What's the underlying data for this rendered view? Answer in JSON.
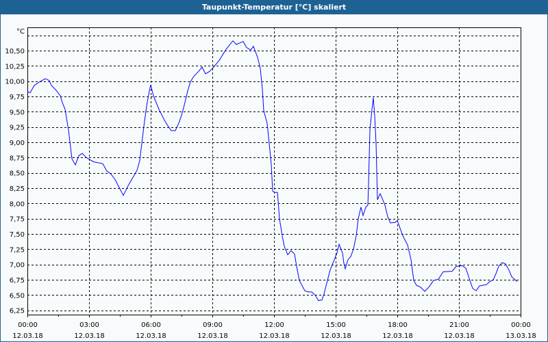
{
  "window": {
    "title": "Taupunkt-Temperatur [°C] skaliert"
  },
  "chart_data": {
    "type": "line",
    "title": "Taupunkt-Temperatur [°C] skaliert",
    "ylabel": "°C",
    "xlabel": "",
    "date": "12.03.18",
    "xlim": [
      "12.03.18 00:00",
      "13.03.18 00:00"
    ],
    "ylim": [
      6.18,
      10.88
    ],
    "grid": true,
    "line_color": "#0000ff",
    "y_ticks": [
      "6,25",
      "6,50",
      "6,75",
      "7,00",
      "7,25",
      "7,50",
      "7,75",
      "8,00",
      "8,25",
      "8,50",
      "8,75",
      "9,00",
      "9,25",
      "9,50",
      "9,75",
      "10,00",
      "10,25",
      "10,50"
    ],
    "y_tick_values": [
      6.25,
      6.5,
      6.75,
      7.0,
      7.25,
      7.5,
      7.75,
      8.0,
      8.25,
      8.5,
      8.75,
      9.0,
      9.25,
      9.5,
      9.75,
      10.0,
      10.25,
      10.5
    ],
    "x_ticks": [
      {
        "time": "00:00",
        "date": "12.03.18"
      },
      {
        "time": "03:00",
        "date": "12.03.18"
      },
      {
        "time": "06:00",
        "date": "12.03.18"
      },
      {
        "time": "09:00",
        "date": "12.03.18"
      },
      {
        "time": "12:00",
        "date": "12.03.18"
      },
      {
        "time": "15:00",
        "date": "12.03.18"
      },
      {
        "time": "18:00",
        "date": "12.03.18"
      },
      {
        "time": "21:00",
        "date": "12.03.18"
      },
      {
        "time": "00:00",
        "date": "13.03.18"
      }
    ],
    "series": [
      {
        "points": [
          [
            "00:00",
            9.83
          ],
          [
            "00:08",
            9.81
          ],
          [
            "00:20",
            9.93
          ],
          [
            "00:36",
            9.99
          ],
          [
            "00:52",
            10.04
          ],
          [
            "01:04",
            10.01
          ],
          [
            "01:10",
            9.93
          ],
          [
            "01:24",
            9.85
          ],
          [
            "01:36",
            9.76
          ],
          [
            "01:42",
            9.65
          ],
          [
            "01:50",
            9.54
          ],
          [
            "02:00",
            9.2
          ],
          [
            "02:06",
            8.92
          ],
          [
            "02:10",
            8.73
          ],
          [
            "02:20",
            8.63
          ],
          [
            "02:30",
            8.78
          ],
          [
            "02:40",
            8.82
          ],
          [
            "02:52",
            8.75
          ],
          [
            "03:04",
            8.71
          ],
          [
            "03:14",
            8.68
          ],
          [
            "03:40",
            8.65
          ],
          [
            "03:52",
            8.53
          ],
          [
            "04:04",
            8.48
          ],
          [
            "04:16",
            8.39
          ],
          [
            "04:28",
            8.26
          ],
          [
            "04:40",
            8.13
          ],
          [
            "04:56",
            8.31
          ],
          [
            "05:20",
            8.54
          ],
          [
            "05:28",
            8.7
          ],
          [
            "05:34",
            8.98
          ],
          [
            "05:40",
            9.26
          ],
          [
            "05:48",
            9.59
          ],
          [
            "05:56",
            9.84
          ],
          [
            "06:00",
            9.94
          ],
          [
            "06:08",
            9.76
          ],
          [
            "06:24",
            9.54
          ],
          [
            "06:40",
            9.36
          ],
          [
            "06:50",
            9.27
          ],
          [
            "07:00",
            9.19
          ],
          [
            "07:12",
            9.19
          ],
          [
            "07:24",
            9.34
          ],
          [
            "07:32",
            9.48
          ],
          [
            "07:40",
            9.65
          ],
          [
            "07:48",
            9.84
          ],
          [
            "07:56",
            9.99
          ],
          [
            "08:06",
            10.08
          ],
          [
            "08:20",
            10.16
          ],
          [
            "08:30",
            10.23
          ],
          [
            "08:40",
            10.12
          ],
          [
            "08:52",
            10.16
          ],
          [
            "09:04",
            10.23
          ],
          [
            "09:20",
            10.34
          ],
          [
            "09:40",
            10.52
          ],
          [
            "10:00",
            10.66
          ],
          [
            "10:10",
            10.6
          ],
          [
            "10:30",
            10.65
          ],
          [
            "10:40",
            10.55
          ],
          [
            "10:52",
            10.51
          ],
          [
            "11:00",
            10.57
          ],
          [
            "11:12",
            10.39
          ],
          [
            "11:20",
            10.21
          ],
          [
            "11:26",
            9.87
          ],
          [
            "11:30",
            9.52
          ],
          [
            "11:36",
            9.39
          ],
          [
            "11:40",
            9.31
          ],
          [
            "11:46",
            8.98
          ],
          [
            "11:52",
            8.64
          ],
          [
            "11:56",
            8.2
          ],
          [
            "12:02",
            8.18
          ],
          [
            "12:10",
            8.18
          ],
          [
            "12:16",
            7.75
          ],
          [
            "12:24",
            7.47
          ],
          [
            "12:30",
            7.3
          ],
          [
            "12:40",
            7.16
          ],
          [
            "12:50",
            7.23
          ],
          [
            "13:00",
            7.17
          ],
          [
            "13:06",
            6.97
          ],
          [
            "13:14",
            6.74
          ],
          [
            "13:30",
            6.57
          ],
          [
            "13:40",
            6.55
          ],
          [
            "13:50",
            6.55
          ],
          [
            "14:00",
            6.5
          ],
          [
            "14:10",
            6.41
          ],
          [
            "14:20",
            6.42
          ],
          [
            "14:26",
            6.52
          ],
          [
            "14:36",
            6.74
          ],
          [
            "14:44",
            6.91
          ],
          [
            "14:56",
            7.08
          ],
          [
            "15:04",
            7.19
          ],
          [
            "15:10",
            7.33
          ],
          [
            "15:20",
            7.19
          ],
          [
            "15:24",
            7.02
          ],
          [
            "15:28",
            6.93
          ],
          [
            "15:36",
            7.08
          ],
          [
            "15:44",
            7.13
          ],
          [
            "15:52",
            7.25
          ],
          [
            "16:00",
            7.47
          ],
          [
            "16:06",
            7.75
          ],
          [
            "16:14",
            7.94
          ],
          [
            "16:20",
            7.8
          ],
          [
            "16:28",
            7.94
          ],
          [
            "16:34",
            7.97
          ],
          [
            "16:36",
            8.31
          ],
          [
            "16:40",
            9.2
          ],
          [
            "16:46",
            9.54
          ],
          [
            "16:50",
            9.73
          ],
          [
            "16:54",
            9.43
          ],
          [
            "16:58",
            8.98
          ],
          [
            "17:00",
            8.53
          ],
          [
            "17:02",
            8.06
          ],
          [
            "17:10",
            8.16
          ],
          [
            "17:16",
            8.08
          ],
          [
            "17:24",
            7.97
          ],
          [
            "17:32",
            7.78
          ],
          [
            "17:40",
            7.68
          ],
          [
            "17:54",
            7.69
          ],
          [
            "18:00",
            7.72
          ],
          [
            "18:16",
            7.47
          ],
          [
            "18:30",
            7.32
          ],
          [
            "18:40",
            7.08
          ],
          [
            "18:48",
            6.74
          ],
          [
            "18:56",
            6.66
          ],
          [
            "19:08",
            6.63
          ],
          [
            "19:20",
            6.56
          ],
          [
            "19:32",
            6.63
          ],
          [
            "19:46",
            6.74
          ],
          [
            "20:00",
            6.76
          ],
          [
            "20:14",
            6.88
          ],
          [
            "20:40",
            6.89
          ],
          [
            "20:52",
            6.97
          ],
          [
            "21:10",
            6.98
          ],
          [
            "21:20",
            6.94
          ],
          [
            "21:32",
            6.74
          ],
          [
            "21:40",
            6.61
          ],
          [
            "21:50",
            6.57
          ],
          [
            "22:00",
            6.65
          ],
          [
            "22:20",
            6.67
          ],
          [
            "22:30",
            6.72
          ],
          [
            "22:40",
            6.75
          ],
          [
            "22:48",
            6.85
          ],
          [
            "22:56",
            6.97
          ],
          [
            "23:06",
            7.03
          ],
          [
            "23:16",
            7.01
          ],
          [
            "23:26",
            6.91
          ],
          [
            "23:34",
            6.8
          ],
          [
            "23:50",
            6.72
          ]
        ]
      }
    ]
  }
}
